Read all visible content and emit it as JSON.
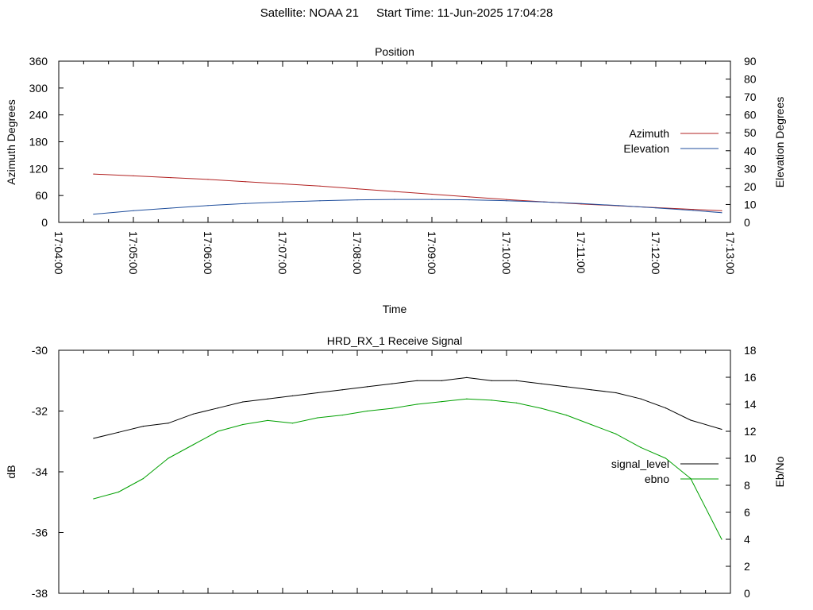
{
  "header": {
    "satellite": "Satellite: NOAA 21",
    "start_time": "Start Time: 11-Jun-2025 17:04:28"
  },
  "chart_data": [
    {
      "type": "line",
      "title": "Position",
      "xlabel": "Time",
      "ylabel": "Azimuth Degrees",
      "y2label": "Elevation Degrees",
      "xlim": [
        "17:04:00",
        "17:13:00"
      ],
      "ylim": [
        0,
        360
      ],
      "y2lim": [
        0,
        90
      ],
      "x_ticks": [
        "17:04:00",
        "17:05:00",
        "17:06:00",
        "17:07:00",
        "17:08:00",
        "17:09:00",
        "17:10:00",
        "17:11:00",
        "17:12:00",
        "17:13:00"
      ],
      "y_ticks": [
        0,
        60,
        120,
        180,
        240,
        300,
        360
      ],
      "y2_ticks": [
        0,
        10,
        20,
        30,
        40,
        50,
        60,
        70,
        80,
        90
      ],
      "grid": false,
      "legend": "right",
      "series": [
        {
          "name": "Azimuth",
          "axis": "y",
          "color": "#b22222",
          "x": [
            "17:04:28",
            "17:05:00",
            "17:05:30",
            "17:06:00",
            "17:06:30",
            "17:07:00",
            "17:07:30",
            "17:08:00",
            "17:08:30",
            "17:09:00",
            "17:09:30",
            "17:10:00",
            "17:10:30",
            "17:11:00",
            "17:11:30",
            "17:12:00",
            "17:12:30",
            "17:12:53"
          ],
          "values": [
            108,
            104,
            100,
            96,
            91,
            86,
            81,
            75,
            69,
            63,
            57,
            51,
            46,
            41,
            37,
            33,
            29,
            26
          ]
        },
        {
          "name": "Elevation",
          "axis": "y2",
          "color": "#1f4e9c",
          "x": [
            "17:04:28",
            "17:05:00",
            "17:05:30",
            "17:06:00",
            "17:06:30",
            "17:07:00",
            "17:07:30",
            "17:08:00",
            "17:08:30",
            "17:09:00",
            "17:09:30",
            "17:10:00",
            "17:10:30",
            "17:11:00",
            "17:11:30",
            "17:12:00",
            "17:12:30",
            "17:12:53"
          ],
          "values": [
            4.6,
            6.5,
            8.0,
            9.4,
            10.5,
            11.4,
            12.1,
            12.6,
            12.8,
            12.8,
            12.6,
            12.1,
            11.4,
            10.5,
            9.4,
            8.1,
            6.7,
            5.4
          ]
        }
      ]
    },
    {
      "type": "line",
      "title": "HRD_RX_1 Receive Signal",
      "ylabel": "dB",
      "y2label": "Eb/No",
      "xlim": [
        "17:04:00",
        "17:13:00"
      ],
      "ylim": [
        -38,
        -30
      ],
      "y2lim": [
        0,
        18
      ],
      "y_ticks": [
        -38,
        -36,
        -34,
        -32,
        -30
      ],
      "y2_ticks": [
        0,
        2,
        4,
        6,
        8,
        10,
        12,
        14,
        16,
        18
      ],
      "grid": false,
      "legend": "right",
      "series": [
        {
          "name": "signal_level",
          "axis": "y",
          "color": "#000000",
          "x": [
            "17:04:28",
            "17:04:48",
            "17:05:08",
            "17:05:28",
            "17:05:48",
            "17:06:08",
            "17:06:28",
            "17:06:48",
            "17:07:08",
            "17:07:28",
            "17:07:48",
            "17:08:08",
            "17:08:28",
            "17:08:48",
            "17:09:08",
            "17:09:28",
            "17:09:48",
            "17:10:08",
            "17:10:28",
            "17:10:48",
            "17:11:08",
            "17:11:28",
            "17:11:48",
            "17:12:08",
            "17:12:28",
            "17:12:53"
          ],
          "values": [
            -32.9,
            -32.7,
            -32.5,
            -32.4,
            -32.1,
            -31.9,
            -31.7,
            -31.6,
            -31.5,
            -31.4,
            -31.3,
            -31.2,
            -31.1,
            -31.0,
            -31.0,
            -30.9,
            -31.0,
            -31.0,
            -31.1,
            -31.2,
            -31.3,
            -31.4,
            -31.6,
            -31.9,
            -32.3,
            -32.6
          ]
        },
        {
          "name": "ebno",
          "axis": "y2",
          "color": "#00a000",
          "x": [
            "17:04:28",
            "17:04:48",
            "17:05:08",
            "17:05:28",
            "17:05:48",
            "17:06:08",
            "17:06:28",
            "17:06:48",
            "17:07:08",
            "17:07:28",
            "17:07:48",
            "17:08:08",
            "17:08:28",
            "17:08:48",
            "17:09:08",
            "17:09:28",
            "17:09:48",
            "17:10:08",
            "17:10:28",
            "17:10:48",
            "17:11:08",
            "17:11:28",
            "17:11:48",
            "17:12:08",
            "17:12:28",
            "17:12:53"
          ],
          "values": [
            7.0,
            7.5,
            8.5,
            10.0,
            11.0,
            12.0,
            12.5,
            12.8,
            12.6,
            13.0,
            13.2,
            13.5,
            13.7,
            14.0,
            14.2,
            14.4,
            14.3,
            14.1,
            13.7,
            13.2,
            12.5,
            11.8,
            10.8,
            10.0,
            8.5,
            4.0
          ]
        }
      ]
    }
  ]
}
